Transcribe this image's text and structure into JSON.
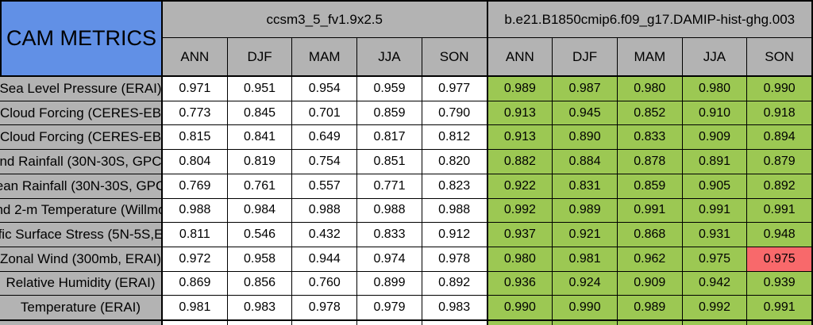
{
  "title": "CAM METRICS",
  "header": {
    "models": [
      {
        "name": "ccsm3_5_fv1.9x2.5"
      },
      {
        "name": "b.e21.B1850cmip6.f09_g17.DAMIP-hist-ghg.003"
      }
    ],
    "season_labels": [
      "ANN",
      "DJF",
      "MAM",
      "JJA",
      "SON"
    ]
  },
  "rows": [
    {
      "label": "Sea Level Pressure (ERAI)",
      "model1": [
        "0.971",
        "0.951",
        "0.954",
        "0.959",
        "0.977"
      ],
      "model2": [
        "0.989",
        "0.987",
        "0.980",
        "0.980",
        "0.990"
      ]
    },
    {
      "label": "Cloud Forcing (CERES-EB",
      "model1": [
        "0.773",
        "0.845",
        "0.701",
        "0.859",
        "0.790"
      ],
      "model2": [
        "0.913",
        "0.945",
        "0.852",
        "0.910",
        "0.918"
      ]
    },
    {
      "label": "Cloud Forcing (CERES-EB",
      "model1": [
        "0.815",
        "0.841",
        "0.649",
        "0.817",
        "0.812"
      ],
      "model2": [
        "0.913",
        "0.890",
        "0.833",
        "0.909",
        "0.894"
      ]
    },
    {
      "label": "nd Rainfall (30N-30S, GPC",
      "model1": [
        "0.804",
        "0.819",
        "0.754",
        "0.851",
        "0.820"
      ],
      "model2": [
        "0.882",
        "0.884",
        "0.878",
        "0.891",
        "0.879"
      ]
    },
    {
      "label": "ean Rainfall (30N-30S, GPC",
      "model1": [
        "0.769",
        "0.761",
        "0.557",
        "0.771",
        "0.823"
      ],
      "model2": [
        "0.922",
        "0.831",
        "0.859",
        "0.905",
        "0.892"
      ]
    },
    {
      "label": "nd 2-m Temperature (Willmo",
      "model1": [
        "0.988",
        "0.984",
        "0.988",
        "0.988",
        "0.988"
      ],
      "model2": [
        "0.992",
        "0.989",
        "0.991",
        "0.991",
        "0.991"
      ]
    },
    {
      "label": "fic Surface Stress (5N-5S,E",
      "model1": [
        "0.811",
        "0.546",
        "0.432",
        "0.833",
        "0.912"
      ],
      "model2": [
        "0.937",
        "0.921",
        "0.868",
        "0.931",
        "0.948"
      ]
    },
    {
      "label": "Zonal Wind (300mb, ERAI)",
      "model1": [
        "0.972",
        "0.958",
        "0.944",
        "0.974",
        "0.978"
      ],
      "model2": [
        "0.980",
        "0.981",
        "0.962",
        "0.975",
        "0.975"
      ]
    },
    {
      "label": "Relative Humidity (ERAI)",
      "model1": [
        "0.869",
        "0.856",
        "0.760",
        "0.899",
        "0.892"
      ],
      "model2": [
        "0.936",
        "0.924",
        "0.909",
        "0.942",
        "0.939"
      ]
    },
    {
      "label": "Temperature (ERAI)",
      "model1": [
        "0.981",
        "0.983",
        "0.978",
        "0.979",
        "0.983"
      ],
      "model2": [
        "0.990",
        "0.990",
        "0.989",
        "0.992",
        "0.991"
      ]
    }
  ],
  "red_cells": [
    {
      "row": 7,
      "season": 4
    }
  ],
  "colors": {
    "header_blue": "#6190e6",
    "header_gray": "#b3b3b3",
    "cell_green": "#9cc853",
    "cell_red": "#f8696b",
    "cell_white": "#ffffff",
    "border": "#000000"
  },
  "chart_data": {
    "type": "table",
    "title": "CAM METRICS",
    "column_groups": [
      "ccsm3_5_fv1.9x2.5",
      "b.e21.B1850cmip6.f09_g17.DAMIP-hist-ghg.003"
    ],
    "columns_per_group": [
      "ANN",
      "DJF",
      "MAM",
      "JJA",
      "SON"
    ],
    "row_labels": [
      "Sea Level Pressure (ERAI)",
      "Cloud Forcing (CERES-EB",
      "Cloud Forcing (CERES-EB",
      "nd Rainfall (30N-30S, GPC",
      "ean Rainfall (30N-30S, GPC",
      "nd 2-m Temperature (Willmo",
      "fic Surface Stress (5N-5S,E",
      "Zonal Wind (300mb, ERAI)",
      "Relative Humidity (ERAI)",
      "Temperature (ERAI)"
    ],
    "series": [
      {
        "name": "ccsm3_5_fv1.9x2.5",
        "values": [
          [
            0.971,
            0.951,
            0.954,
            0.959,
            0.977
          ],
          [
            0.773,
            0.845,
            0.701,
            0.859,
            0.79
          ],
          [
            0.815,
            0.841,
            0.649,
            0.817,
            0.812
          ],
          [
            0.804,
            0.819,
            0.754,
            0.851,
            0.82
          ],
          [
            0.769,
            0.761,
            0.557,
            0.771,
            0.823
          ],
          [
            0.988,
            0.984,
            0.988,
            0.988,
            0.988
          ],
          [
            0.811,
            0.546,
            0.432,
            0.833,
            0.912
          ],
          [
            0.972,
            0.958,
            0.944,
            0.974,
            0.978
          ],
          [
            0.869,
            0.856,
            0.76,
            0.899,
            0.892
          ],
          [
            0.981,
            0.983,
            0.978,
            0.979,
            0.983
          ]
        ]
      },
      {
        "name": "b.e21.B1850cmip6.f09_g17.DAMIP-hist-ghg.003",
        "values": [
          [
            0.989,
            0.987,
            0.98,
            0.98,
            0.99
          ],
          [
            0.913,
            0.945,
            0.852,
            0.91,
            0.918
          ],
          [
            0.913,
            0.89,
            0.833,
            0.909,
            0.894
          ],
          [
            0.882,
            0.884,
            0.878,
            0.891,
            0.879
          ],
          [
            0.922,
            0.831,
            0.859,
            0.905,
            0.892
          ],
          [
            0.992,
            0.989,
            0.991,
            0.991,
            0.991
          ],
          [
            0.937,
            0.921,
            0.868,
            0.931,
            0.948
          ],
          [
            0.98,
            0.981,
            0.962,
            0.975,
            0.975
          ],
          [
            0.936,
            0.924,
            0.909,
            0.942,
            0.939
          ],
          [
            0.99,
            0.99,
            0.989,
            0.992,
            0.991
          ]
        ]
      }
    ],
    "highlight": {
      "description": "second model cells shaded green; one cell shaded red",
      "red_cell": {
        "row_label": "Zonal Wind (300mb, ERAI)",
        "group": "b.e21.B1850cmip6.f09_g17.DAMIP-hist-ghg.003",
        "column": "SON",
        "value": 0.975
      }
    }
  }
}
